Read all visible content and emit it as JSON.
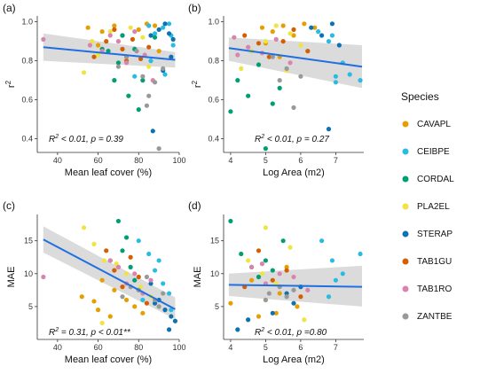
{
  "legend": {
    "title": "Species",
    "entries": [
      {
        "name": "CAVAPL",
        "color": "#E69F00"
      },
      {
        "name": "CEIBPE",
        "color": "#29BCE3"
      },
      {
        "name": "CORDAL",
        "color": "#009E73"
      },
      {
        "name": "PLA2EL",
        "color": "#EFE442"
      },
      {
        "name": "STERAP",
        "color": "#0C72B2"
      },
      {
        "name": "TAB1GU",
        "color": "#D55E00"
      },
      {
        "name": "TAB1RO",
        "color": "#D983B0"
      },
      {
        "name": "ZANTBE",
        "color": "#999999"
      }
    ]
  },
  "chart_data": [
    {
      "panel": "(a)",
      "type": "scatter",
      "xlabel": "Mean leaf cover (%)",
      "ylabel": "r2",
      "xlim": [
        30,
        100
      ],
      "ylim": [
        0.33,
        1.03
      ],
      "xticks": [
        "40",
        "60",
        "80",
        "100"
      ],
      "yticks": [
        "0.4",
        "0.6",
        "0.8",
        "1.0"
      ],
      "annotation": [
        "R",
        "2",
        " < 0.01, p = 0.39"
      ],
      "trend": {
        "x": [
          33,
          98
        ],
        "y": [
          0.87,
          0.805
        ]
      },
      "band": {
        "x": [
          33,
          98
        ],
        "upper_start": 0.94,
        "upper_end": 0.845,
        "lower_start": 0.8,
        "lower_end": 0.765
      },
      "points": [
        {
          "species": "CAVAPL",
          "x": [
            55,
            62,
            68,
            72,
            80,
            84,
            88,
            60,
            74,
            90
          ],
          "y": [
            0.97,
            0.95,
            0.98,
            0.93,
            0.96,
            0.99,
            0.98,
            0.88,
            0.82,
            0.85
          ]
        },
        {
          "species": "CEIBPE",
          "x": [
            85,
            88,
            92,
            95,
            97,
            78,
            93,
            86,
            96
          ],
          "y": [
            0.98,
            0.94,
            0.97,
            0.99,
            0.88,
            0.72,
            0.73,
            0.8,
            0.93
          ]
        },
        {
          "species": "CORDAL",
          "x": [
            65,
            72,
            78,
            82,
            75,
            68,
            70,
            62,
            88,
            80
          ],
          "y": [
            0.85,
            0.93,
            0.86,
            0.7,
            0.62,
            0.7,
            0.79,
            0.86,
            0.92,
            0.55
          ]
        },
        {
          "species": "PLA2EL",
          "x": [
            53,
            60,
            66,
            70,
            76,
            82,
            85,
            57
          ],
          "y": [
            0.74,
            0.83,
            0.95,
            0.9,
            0.97,
            0.92,
            0.77,
            0.9
          ]
        },
        {
          "species": "STERAP",
          "x": [
            86,
            90,
            93,
            95,
            97,
            87,
            96,
            92
          ],
          "y": [
            0.93,
            0.96,
            0.99,
            0.94,
            0.91,
            0.44,
            0.82,
            0.75
          ]
        },
        {
          "species": "TAB1GU",
          "x": [
            58,
            64,
            68,
            72,
            77,
            81,
            85,
            74
          ],
          "y": [
            0.82,
            0.9,
            0.96,
            0.86,
            0.91,
            0.81,
            0.87,
            0.8
          ]
        },
        {
          "species": "TAB1RO",
          "x": [
            33,
            56,
            62,
            66,
            70,
            74,
            78,
            83,
            87
          ],
          "y": [
            0.91,
            0.88,
            0.85,
            0.93,
            0.9,
            0.79,
            0.95,
            0.83,
            0.7
          ]
        },
        {
          "species": "ZANTBE",
          "x": [
            70,
            74,
            79,
            82,
            85,
            88,
            92,
            84,
            90
          ],
          "y": [
            0.77,
            0.82,
            0.85,
            0.72,
            0.62,
            0.69,
            0.76,
            0.57,
            0.35
          ]
        }
      ]
    },
    {
      "panel": "(b)",
      "type": "scatter",
      "xlabel": "Log Area (m2)",
      "ylabel": "r2",
      "xlim": [
        3.8,
        7.8
      ],
      "ylim": [
        0.33,
        1.03
      ],
      "xticks": [
        "4",
        "5",
        "6",
        "7"
      ],
      "yticks": [
        "0.4",
        "0.6",
        "0.8",
        "1.0"
      ],
      "annotation": [
        "R",
        "2",
        " < 0.01, p = 0.27"
      ],
      "trend": {
        "x": [
          3.95,
          7.75
        ],
        "y": [
          0.865,
          0.77
        ]
      },
      "band": {
        "x": [
          3.95,
          7.75
        ],
        "upper_start": 0.92,
        "upper_end": 0.88,
        "lower_start": 0.8,
        "lower_end": 0.66
      },
      "points": [
        {
          "species": "CAVAPL",
          "x": [
            4.9,
            5.2,
            5.5,
            5.8,
            6.1,
            5.0,
            5.4,
            6.4
          ],
          "y": [
            0.97,
            0.95,
            0.98,
            0.93,
            0.99,
            0.89,
            0.82,
            0.97
          ]
        },
        {
          "species": "CEIBPE",
          "x": [
            6.5,
            6.8,
            7.0,
            7.2,
            7.7,
            7.0,
            7.4,
            6.9
          ],
          "y": [
            0.95,
            0.9,
            0.72,
            0.79,
            0.7,
            0.69,
            0.73,
            0.93
          ]
        },
        {
          "species": "CORDAL",
          "x": [
            4.2,
            4.5,
            4.8,
            5.2,
            4.0,
            5.0,
            5.4,
            4.6
          ],
          "y": [
            0.7,
            0.62,
            0.78,
            0.58,
            0.54,
            0.35,
            0.66,
            0.85
          ]
        },
        {
          "species": "PLA2EL",
          "x": [
            4.6,
            5.0,
            5.3,
            5.7,
            6.0,
            4.3,
            5.6
          ],
          "y": [
            0.85,
            0.9,
            0.98,
            0.94,
            0.88,
            0.76,
            0.75
          ]
        },
        {
          "species": "STERAP",
          "x": [
            6.3,
            6.6,
            6.9,
            7.1,
            6.8
          ],
          "y": [
            0.97,
            0.93,
            0.99,
            0.88,
            0.45
          ]
        },
        {
          "species": "TAB1GU",
          "x": [
            4.4,
            4.8,
            5.1,
            5.5,
            5.8,
            6.2
          ],
          "y": [
            0.93,
            0.89,
            0.82,
            0.9,
            0.96,
            0.85
          ]
        },
        {
          "species": "TAB1RO",
          "x": [
            4.1,
            4.5,
            4.9,
            5.3,
            5.7,
            4.2
          ],
          "y": [
            0.92,
            0.87,
            0.84,
            0.91,
            0.79,
            0.83
          ]
        },
        {
          "species": "ZANTBE",
          "x": [
            5.2,
            5.6,
            6.0,
            5.8,
            5.4
          ],
          "y": [
            0.82,
            0.76,
            0.72,
            0.56,
            0.7
          ]
        }
      ]
    },
    {
      "panel": "(c)",
      "type": "scatter",
      "xlabel": "Mean leaf cover (%)",
      "ylabel": "MAE",
      "xlim": [
        30,
        100
      ],
      "ylim": [
        0,
        19
      ],
      "xticks": [
        "40",
        "60",
        "80",
        "100"
      ],
      "yticks": [
        "5",
        "10",
        "15"
      ],
      "annotation": [
        "R",
        "2",
        " = 0.31, p < 0.01**"
      ],
      "trend": {
        "x": [
          33,
          98
        ],
        "y": [
          15.2,
          4.6
        ]
      },
      "band": {
        "x": [
          33,
          98
        ],
        "upper_start": 17.2,
        "upper_end": 6.4,
        "lower_start": 13.2,
        "lower_end": 3.1
      },
      "points": [
        {
          "species": "CAVAPL",
          "x": [
            52,
            58,
            62,
            66,
            70,
            74,
            78,
            82,
            60,
            68
          ],
          "y": [
            6.5,
            5.8,
            9.0,
            3.5,
            11.0,
            6.0,
            5.0,
            4.0,
            4.5,
            7.5
          ]
        },
        {
          "species": "CEIBPE",
          "x": [
            80,
            85,
            88,
            92,
            95,
            82,
            90,
            96
          ],
          "y": [
            15.0,
            13.0,
            10.5,
            8.5,
            7.0,
            6.0,
            12.0,
            4.5
          ]
        },
        {
          "species": "CORDAL",
          "x": [
            70,
            72,
            76,
            78,
            74,
            66,
            80
          ],
          "y": [
            18.0,
            13.5,
            11.0,
            9.0,
            15.5,
            12.0,
            7.5
          ]
        },
        {
          "species": "PLA2EL",
          "x": [
            53,
            58,
            63,
            69,
            74,
            81,
            86,
            62
          ],
          "y": [
            17.0,
            14.5,
            12.0,
            11.5,
            10.0,
            8.0,
            6.5,
            2.5
          ]
        },
        {
          "species": "STERAP",
          "x": [
            86,
            90,
            93,
            96,
            98,
            88,
            95
          ],
          "y": [
            8.5,
            6.0,
            4.5,
            3.5,
            2.8,
            5.5,
            1.5
          ]
        },
        {
          "species": "TAB1GU",
          "x": [
            64,
            68,
            72,
            76,
            80,
            84
          ],
          "y": [
            13.5,
            10.5,
            8.0,
            12.5,
            9.5,
            5.5
          ]
        },
        {
          "species": "TAB1RO",
          "x": [
            33,
            66,
            70,
            74,
            78,
            82,
            86
          ],
          "y": [
            9.5,
            12.0,
            11.0,
            8.5,
            10.0,
            7.0,
            9.0
          ]
        },
        {
          "species": "ZANTBE",
          "x": [
            72,
            76,
            80,
            84,
            88,
            92,
            90
          ],
          "y": [
            6.5,
            8.0,
            7.5,
            9.5,
            6.0,
            7.0,
            5.0
          ]
        }
      ]
    },
    {
      "panel": "(d)",
      "type": "scatter",
      "xlabel": "Log Area (m2)",
      "ylabel": "MAE",
      "xlim": [
        3.8,
        7.8
      ],
      "ylim": [
        0,
        19
      ],
      "xticks": [
        "4",
        "5",
        "6",
        "7"
      ],
      "yticks": [
        "5",
        "10",
        "15"
      ],
      "annotation": [
        "R",
        "2",
        " < 0.01, p =0.80"
      ],
      "trend": {
        "x": [
          3.95,
          7.75
        ],
        "y": [
          8.3,
          8.0
        ]
      },
      "band": {
        "x": [
          3.95,
          7.75
        ],
        "upper_start": 10.0,
        "upper_end": 11.2,
        "lower_start": 6.6,
        "lower_end": 5.0
      },
      "points": [
        {
          "species": "CAVAPL",
          "x": [
            4.0,
            4.6,
            5.0,
            5.3,
            5.6,
            5.9,
            4.8,
            5.4
          ],
          "y": [
            5.5,
            9.0,
            6.0,
            4.0,
            11.0,
            5.0,
            3.5,
            7.0
          ]
        },
        {
          "species": "CEIBPE",
          "x": [
            6.6,
            6.9,
            7.2,
            7.7,
            7.0,
            6.8
          ],
          "y": [
            15.0,
            12.0,
            10.0,
            13.0,
            9.0,
            6.5
          ]
        },
        {
          "species": "CORDAL",
          "x": [
            4.0,
            4.3,
            4.6,
            5.0,
            5.5,
            4.8,
            5.2
          ],
          "y": [
            18.0,
            13.0,
            11.0,
            12.0,
            15.0,
            9.5,
            10.5
          ]
        },
        {
          "species": "PLA2EL",
          "x": [
            4.5,
            4.9,
            5.3,
            5.7,
            6.1,
            5.0
          ],
          "y": [
            12.0,
            10.0,
            8.5,
            14.0,
            3.0,
            17.0
          ]
        },
        {
          "species": "STERAP",
          "x": [
            4.2,
            4.5,
            5.6,
            5.8,
            6.0,
            5.2
          ],
          "y": [
            1.5,
            3.0,
            7.0,
            5.5,
            8.0,
            4.0
          ]
        },
        {
          "species": "TAB1GU",
          "x": [
            4.4,
            4.8,
            5.2,
            5.6,
            6.0
          ],
          "y": [
            8.0,
            13.5,
            9.0,
            10.5,
            6.5
          ]
        },
        {
          "species": "TAB1RO",
          "x": [
            4.6,
            5.0,
            5.4,
            5.8,
            6.2,
            4.9
          ],
          "y": [
            11.0,
            8.5,
            10.0,
            9.5,
            7.5,
            11.5
          ]
        },
        {
          "species": "ZANTBE",
          "x": [
            5.0,
            5.4,
            5.8,
            5.1,
            5.6
          ],
          "y": [
            6.0,
            8.0,
            7.5,
            7.0,
            6.5
          ]
        }
      ]
    }
  ]
}
